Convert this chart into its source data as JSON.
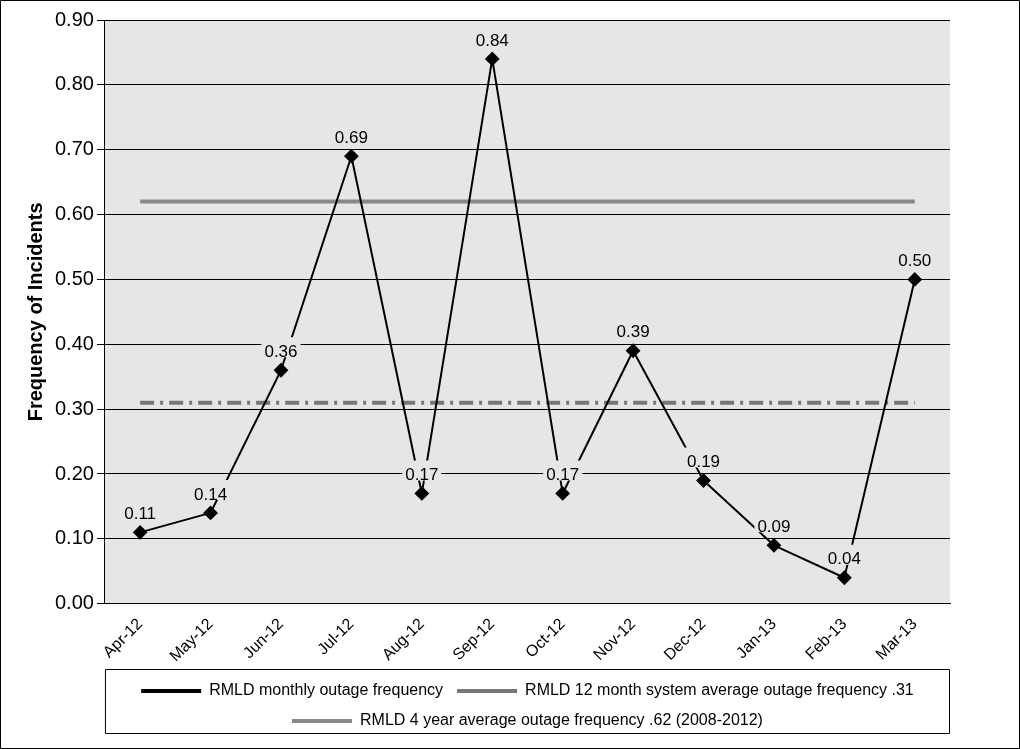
{
  "chart_data": {
    "type": "line",
    "ylabel": "Frequency of Incidents",
    "categories": [
      "Apr-12",
      "May-12",
      "Jun-12",
      "Jul-12",
      "Aug-12",
      "Sep-12",
      "Oct-12",
      "Nov-12",
      "Dec-12",
      "Jan-13",
      "Feb-13",
      "Mar-13"
    ],
    "series": [
      {
        "name": "RMLD monthly outage frequency",
        "color": "#000000",
        "marker": "diamond",
        "line_style": "solid",
        "values": [
          0.11,
          0.14,
          0.36,
          0.69,
          0.17,
          0.84,
          0.17,
          0.39,
          0.19,
          0.09,
          0.04,
          0.5
        ],
        "value_labels": [
          "0.11",
          "0.14",
          "0.36",
          "0.69",
          "0.17",
          "0.84",
          "0.17",
          "0.39",
          "0.19",
          "0.09",
          "0.04",
          "0.50"
        ]
      },
      {
        "name": "RMLD 12 month system average outage frequency .31",
        "color": "#777777",
        "marker": "none",
        "line_style": "dashed",
        "values": [
          0.31,
          0.31,
          0.31,
          0.31,
          0.31,
          0.31,
          0.31,
          0.31,
          0.31,
          0.31,
          0.31,
          0.31
        ]
      },
      {
        "name": "RMLD 4 year average outage frequency .62 (2008-2012)",
        "color": "#888888",
        "marker": "none",
        "line_style": "solid",
        "values": [
          0.62,
          0.62,
          0.62,
          0.62,
          0.62,
          0.62,
          0.62,
          0.62,
          0.62,
          0.62,
          0.62,
          0.62
        ]
      }
    ],
    "ylim": [
      0,
      0.9
    ],
    "yticks": [
      "0.00",
      "0.10",
      "0.20",
      "0.30",
      "0.40",
      "0.50",
      "0.60",
      "0.70",
      "0.80",
      "0.90"
    ],
    "grid": "y",
    "legend": "bottom"
  }
}
